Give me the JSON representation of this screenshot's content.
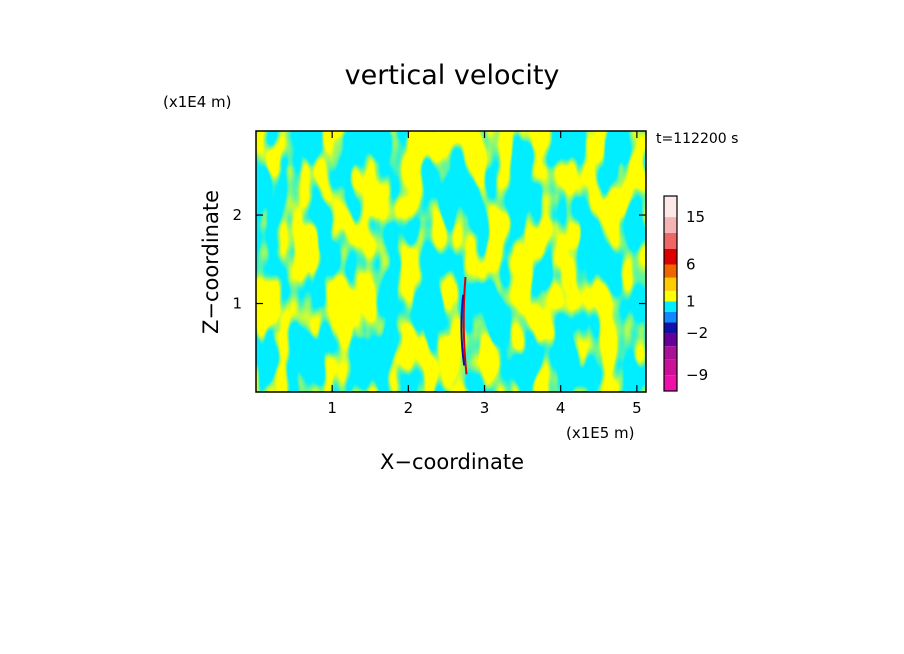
{
  "chart_data": {
    "type": "heatmap",
    "title": "vertical velocity",
    "xlabel": "X−coordinate",
    "ylabel": "Z−coordinate",
    "x_scale_label": "(x1E5 m)",
    "y_scale_label": "(x1E4 m)",
    "time_label": "t=112200 s",
    "xlim": [
      0,
      5.12
    ],
    "ylim": [
      0,
      2.95
    ],
    "x_ticks": [
      1,
      2,
      3,
      4,
      5
    ],
    "y_ticks": [
      1,
      2
    ],
    "x_tick_labels": [
      "1",
      "2",
      "3",
      "4",
      "5"
    ],
    "y_tick_labels": [
      "1",
      "2"
    ],
    "field_colors": {
      "positive": "#ffff00",
      "negative": "#00eeff"
    },
    "colorbar": {
      "levels": [
        -12,
        -9,
        -6,
        -4,
        -2,
        -1,
        0,
        1,
        2,
        4,
        6,
        9,
        12,
        15,
        20
      ],
      "colors": [
        "#ee11aa",
        "#cc1199",
        "#aa1199",
        "#660099",
        "#1111aa",
        "#1188ff",
        "#00eeff",
        "#ffff00",
        "#ffcc00",
        "#ee6600",
        "#dd0000",
        "#ee6666",
        "#f4b4b4",
        "#fde8e8"
      ],
      "tick_values": [
        15,
        6,
        1,
        -2,
        -9
      ],
      "tick_labels": [
        "15",
        "6",
        "1",
        "−2",
        "−9"
      ]
    },
    "features": [
      {
        "x": 2.75,
        "z_min": 0.2,
        "z_max": 1.3,
        "description_color": "#dd0000"
      },
      {
        "x": 2.72,
        "z_min": 0.3,
        "z_max": 1.1,
        "description_color": "#1111aa"
      }
    ]
  }
}
